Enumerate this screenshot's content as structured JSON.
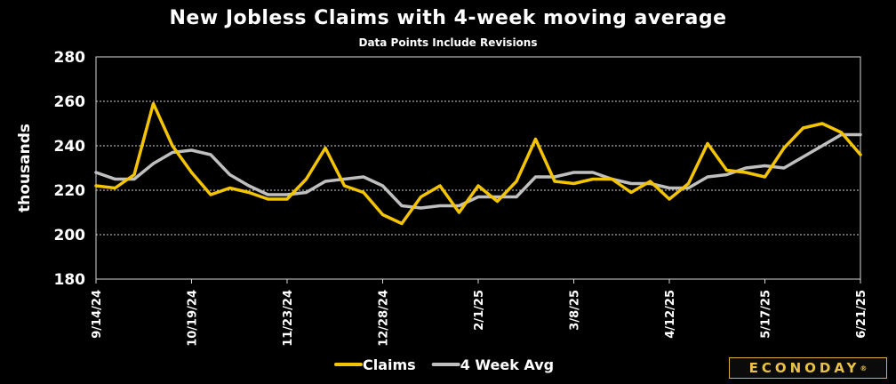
{
  "chart_data": {
    "type": "line",
    "title": "New Jobless Claims with 4-week moving average",
    "subtitle": "Data Points Include Revisions",
    "ylabel": "thousands",
    "xlabel": "",
    "ylim": [
      180,
      280
    ],
    "yticks": [
      180,
      200,
      220,
      240,
      260,
      280
    ],
    "x_tick_labels": [
      "9/14/24",
      "10/19/24",
      "11/23/24",
      "12/28/24",
      "2/1/25",
      "3/8/25",
      "4/12/25",
      "5/17/25",
      "6/21/25"
    ],
    "x_tick_every": 5,
    "grid": "horizontal",
    "legend_position": "bottom-center",
    "series": [
      {
        "name": "Claims",
        "color": "#f5c400",
        "values": [
          222,
          221,
          227,
          259,
          240,
          228,
          218,
          221,
          219,
          216,
          216,
          225,
          239,
          222,
          219,
          209,
          205,
          217,
          222,
          210,
          222,
          215,
          224,
          243,
          224,
          223,
          225,
          225,
          219,
          224,
          216,
          223,
          241,
          229,
          228,
          226,
          239,
          248,
          250,
          246,
          236
        ]
      },
      {
        "name": "4 Week Avg",
        "color": "#bfbfbf",
        "values": [
          228,
          225,
          225,
          232,
          237,
          238,
          236,
          227,
          222,
          218,
          218,
          219,
          224,
          225,
          226,
          222,
          213,
          212,
          213,
          213,
          217,
          217,
          217,
          226,
          226,
          228,
          228,
          225,
          223,
          223,
          221,
          221,
          226,
          227,
          230,
          231,
          230,
          235,
          240,
          245,
          245
        ]
      }
    ]
  },
  "brand": {
    "name": "ECONODAY",
    "mark": "®",
    "color": "#e8c24a"
  }
}
